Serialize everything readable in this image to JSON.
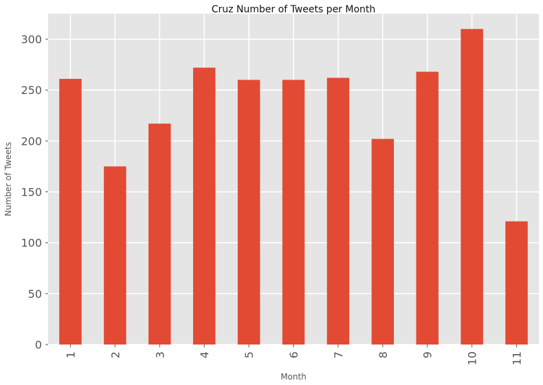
{
  "chart_data": {
    "type": "bar",
    "title": "Cruz Number of Tweets per Month",
    "xlabel": "Month",
    "ylabel": "Number of Tweets",
    "categories": [
      "1",
      "2",
      "3",
      "4",
      "5",
      "6",
      "7",
      "8",
      "9",
      "10",
      "11"
    ],
    "values": [
      261,
      175,
      217,
      272,
      260,
      260,
      262,
      202,
      268,
      310,
      121
    ],
    "ylim": [
      0,
      325
    ],
    "yticks": [
      0,
      50,
      100,
      150,
      200,
      250,
      300
    ],
    "grid": true,
    "legend": "none",
    "colors": {
      "bar": "#E24A33",
      "plot_background": "#E5E5E5",
      "grid": "#FFFFFF",
      "text": "#555555",
      "title": "#111111"
    }
  }
}
